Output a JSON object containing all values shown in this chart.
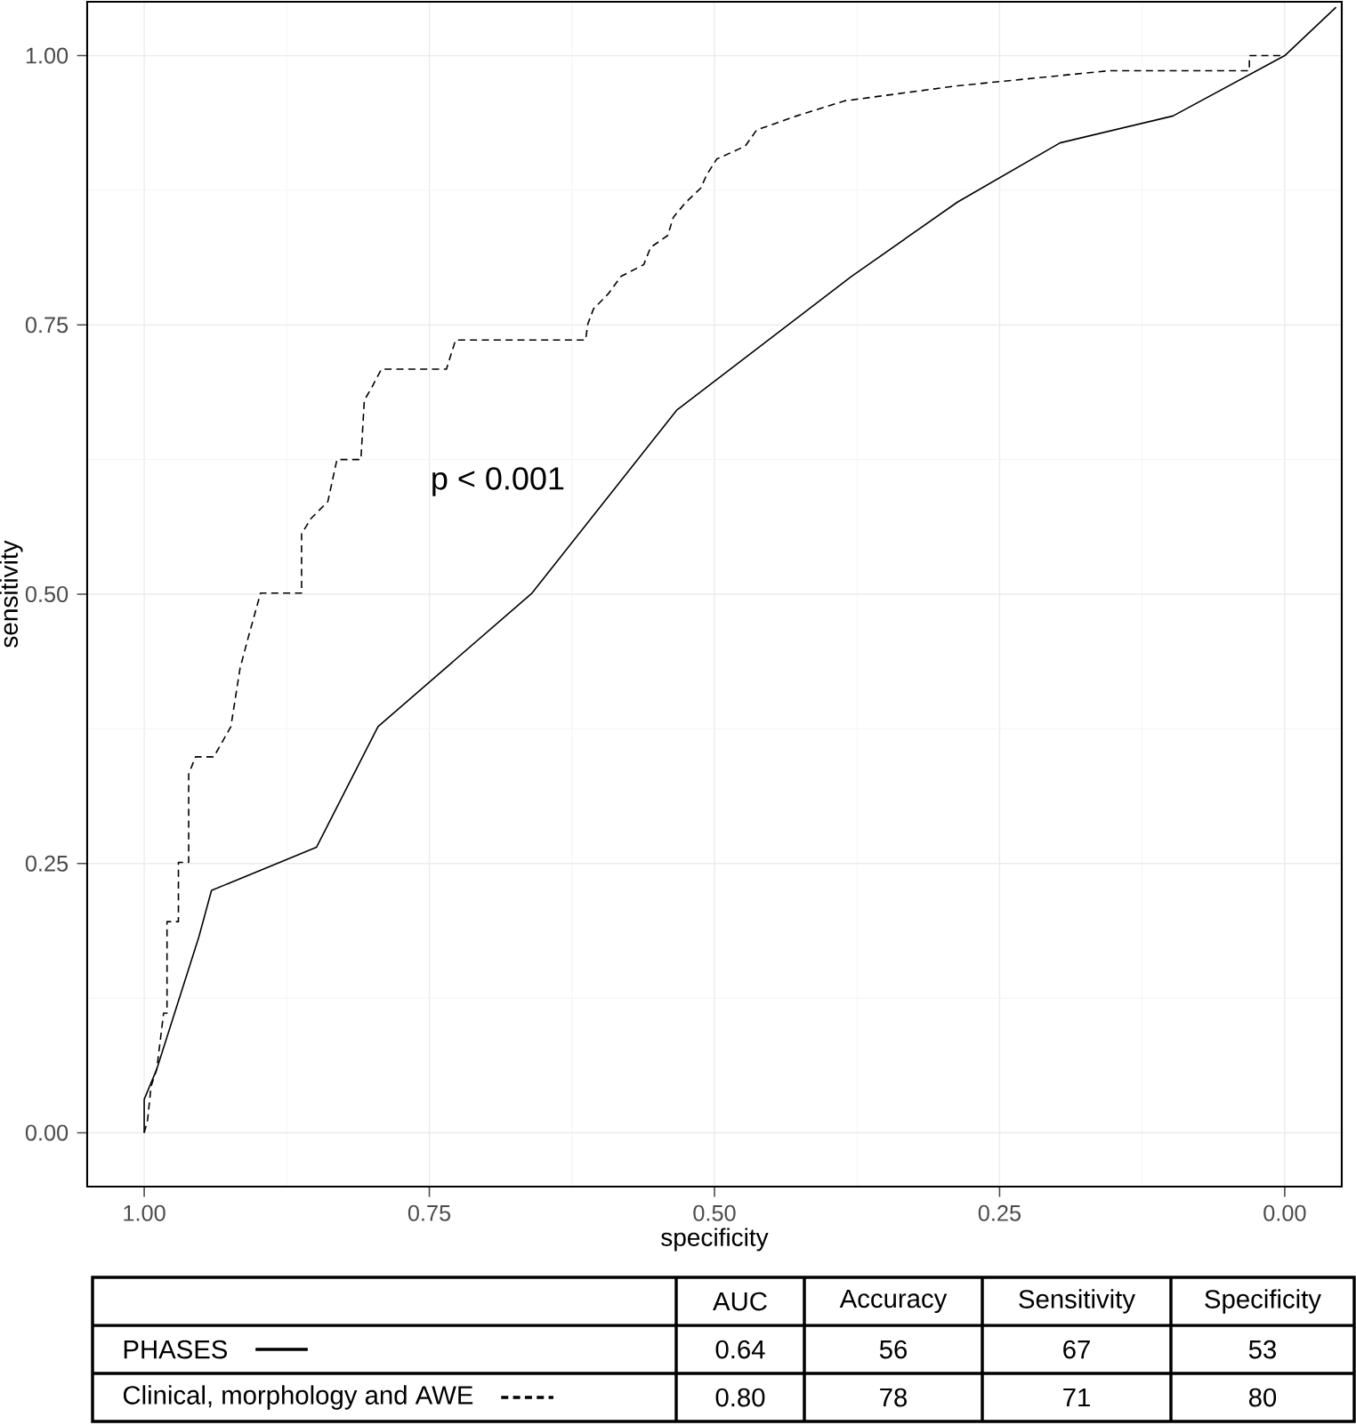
{
  "chart_data": {
    "type": "line",
    "xlabel": "specificity",
    "ylabel": "sensitivity",
    "xlim": [
      1.05,
      -0.05
    ],
    "ylim": [
      -0.05,
      1.05
    ],
    "xticks": [
      {
        "value": 1.0,
        "label": "1.00"
      },
      {
        "value": 0.75,
        "label": "0.75"
      },
      {
        "value": 0.5,
        "label": "0.50"
      },
      {
        "value": 0.25,
        "label": "0.25"
      },
      {
        "value": 0.0,
        "label": "0.00"
      }
    ],
    "yticks": [
      {
        "value": 0.0,
        "label": "0.00"
      },
      {
        "value": 0.25,
        "label": "0.25"
      },
      {
        "value": 0.5,
        "label": "0.50"
      },
      {
        "value": 0.75,
        "label": "0.75"
      },
      {
        "value": 1.0,
        "label": "1.00"
      }
    ],
    "grid": true,
    "legend": "bottom",
    "series": [
      {
        "name": "PHASES",
        "color": "#000000",
        "line_style": "solid",
        "x": [
          1.0,
          1.0,
          0.989,
          0.952,
          0.941,
          0.849,
          0.795,
          0.66,
          0.533,
          0.38,
          0.287,
          0.197,
          0.098,
          0.0,
          -0.045
        ],
        "values": [
          0.0,
          0.031,
          0.059,
          0.182,
          0.225,
          0.265,
          0.377,
          0.501,
          0.671,
          0.795,
          0.864,
          0.919,
          0.944,
          1.0,
          1.045
        ]
      },
      {
        "name": "Clinical, morphology and AWE",
        "color": "#000000",
        "line_style": "dashed",
        "x": [
          1.0,
          0.997,
          0.994,
          0.989,
          0.983,
          0.98,
          0.98,
          0.97,
          0.97,
          0.961,
          0.961,
          0.955,
          0.939,
          0.932,
          0.924,
          0.916,
          0.909,
          0.898,
          0.862,
          0.862,
          0.854,
          0.839,
          0.831,
          0.81,
          0.807,
          0.8,
          0.792,
          0.735,
          0.727,
          0.613,
          0.611,
          0.606,
          0.593,
          0.582,
          0.562,
          0.556,
          0.541,
          0.536,
          0.525,
          0.512,
          0.507,
          0.498,
          0.473,
          0.463,
          0.428,
          0.386,
          0.287,
          0.154,
          0.031,
          0.031,
          0.0
        ],
        "values": [
          0.0,
          0.012,
          0.043,
          0.059,
          0.111,
          0.111,
          0.196,
          0.196,
          0.251,
          0.251,
          0.333,
          0.349,
          0.349,
          0.362,
          0.377,
          0.431,
          0.459,
          0.501,
          0.501,
          0.556,
          0.57,
          0.586,
          0.625,
          0.625,
          0.68,
          0.693,
          0.709,
          0.709,
          0.736,
          0.736,
          0.751,
          0.765,
          0.779,
          0.795,
          0.806,
          0.822,
          0.833,
          0.85,
          0.864,
          0.877,
          0.889,
          0.904,
          0.916,
          0.931,
          0.944,
          0.958,
          0.972,
          0.986,
          0.986,
          1.0,
          1.0
        ]
      }
    ],
    "annotations": [
      "p < 0.001",
      "AUC",
      "Accuracy",
      "Sensitivity",
      "Specificity",
      "0.64",
      "56",
      "67",
      "53",
      "0.80",
      "78",
      "71",
      "80"
    ]
  }
}
